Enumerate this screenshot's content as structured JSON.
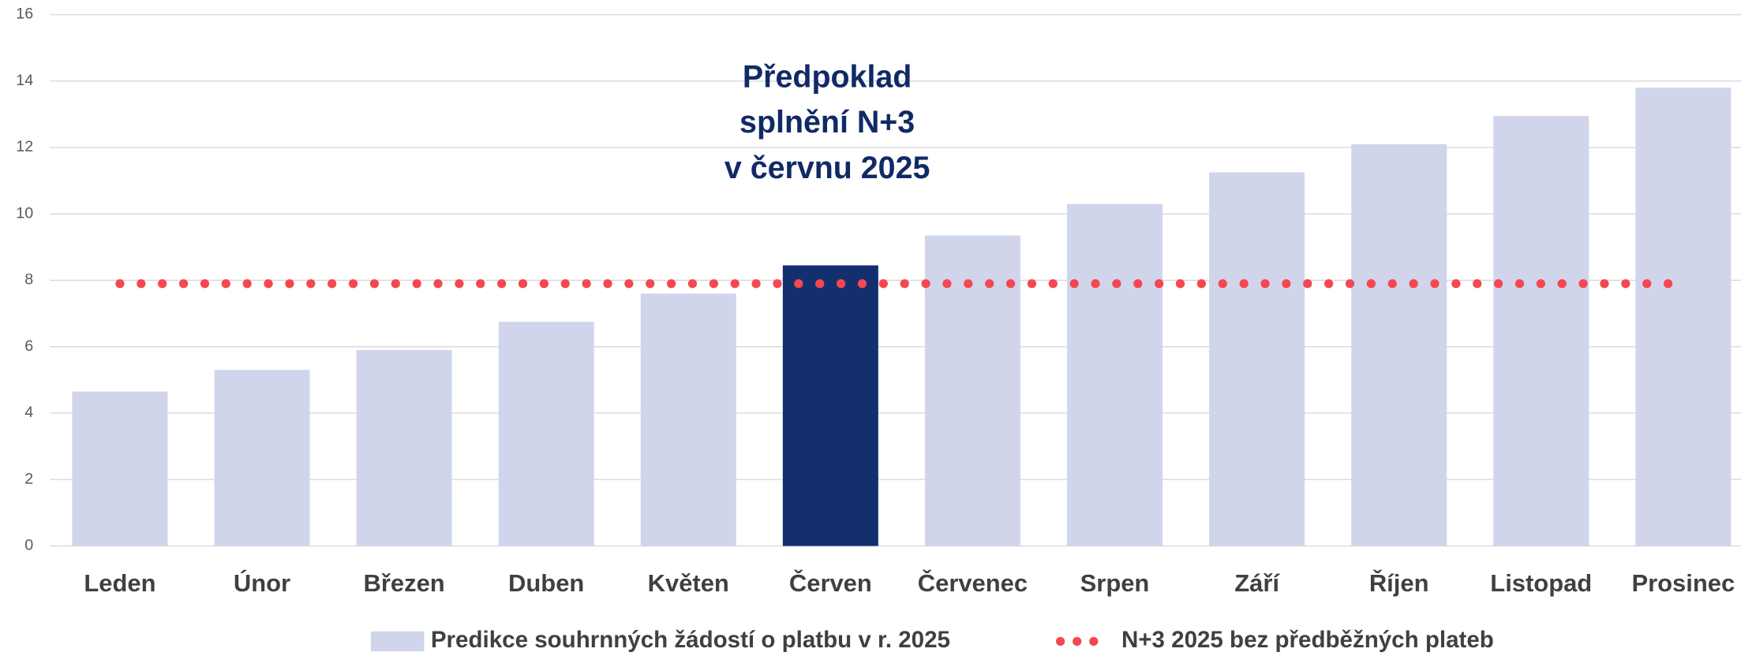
{
  "chart_data": {
    "type": "bar",
    "annotation": [
      "Předpoklad",
      "splnění N+3",
      "v červnu 2025"
    ],
    "categories": [
      "Leden",
      "Únor",
      "Březen",
      "Duben",
      "Květen",
      "Červen",
      "Červenec",
      "Srpen",
      "Září",
      "Říjen",
      "Listopad",
      "Prosinec"
    ],
    "series": [
      {
        "name": "Predikce souhrnných žádostí o platbu v r. 2025",
        "type": "bar",
        "color": "#d0d5ec",
        "bar_colors": [
          "#d0d5ec",
          "#d0d5ec",
          "#d0d5ec",
          "#d0d5ec",
          "#d0d5ec",
          "#142f6e",
          "#d0d5ec",
          "#d0d5ec",
          "#d0d5ec",
          "#d0d5ec",
          "#d0d5ec",
          "#d0d5ec"
        ],
        "values": [
          4.65,
          5.3,
          5.9,
          6.75,
          7.6,
          8.45,
          9.35,
          10.3,
          11.25,
          12.1,
          12.95,
          13.8
        ]
      },
      {
        "name": "N+3 2025 bez předběžných plateb",
        "type": "dotted-line",
        "color": "#f5474f",
        "values": [
          7.9,
          7.9,
          7.9,
          7.9,
          7.9,
          7.9,
          7.9,
          7.9,
          7.9,
          7.9,
          7.9,
          7.9
        ]
      }
    ],
    "ylim": [
      0,
      16
    ],
    "yticks": [
      0,
      2,
      4,
      6,
      8,
      10,
      12,
      14,
      16
    ],
    "grid": true,
    "legend": "bottom"
  }
}
